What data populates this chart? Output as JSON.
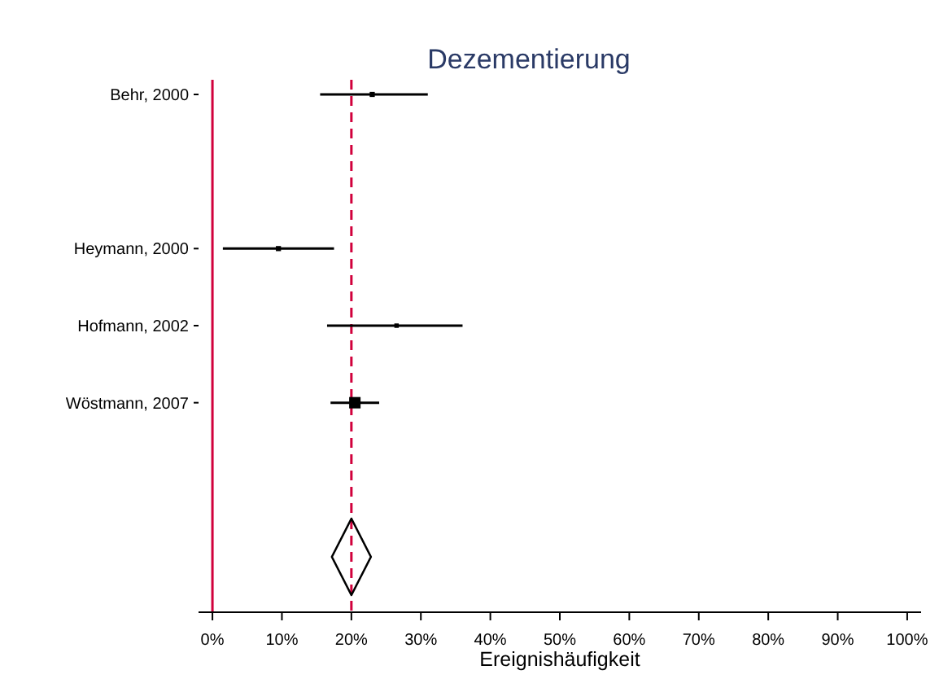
{
  "chart_data": {
    "type": "scatter",
    "orientation": "horizontal",
    "title": "Dezementierung",
    "xlabel": "Ereignishäufigkeit",
    "categories": [
      "Behr, 2000",
      null,
      "Heymann, 2000",
      "Hofmann, 2002",
      "Wöstmann, 2007",
      null,
      null
    ],
    "xlim": [
      -2,
      102
    ],
    "xticks": [
      {
        "value": 0,
        "label": "0%"
      },
      {
        "value": 10,
        "label": "10%"
      },
      {
        "value": 20,
        "label": "20%"
      },
      {
        "value": 30,
        "label": "30%"
      },
      {
        "value": 40,
        "label": "40%"
      },
      {
        "value": 50,
        "label": "50%"
      },
      {
        "value": 60,
        "label": "60%"
      },
      {
        "value": 70,
        "label": "70%"
      },
      {
        "value": 80,
        "label": "80%"
      },
      {
        "value": 90,
        "label": "90%"
      },
      {
        "value": 100,
        "label": "100%"
      }
    ],
    "series": [
      {
        "type": "bubble",
        "marker": "square",
        "color": "#000000",
        "values": [
          23,
          null,
          9.5,
          26.5,
          20.5,
          null,
          null
        ],
        "sizes": [
          0.2,
          null,
          0.2,
          0.15,
          1,
          null,
          null
        ],
        "errors": [
          [
            15.5,
            31
          ],
          null,
          [
            1.5,
            17.5
          ],
          [
            16.5,
            36
          ],
          [
            17,
            24
          ],
          null,
          null
        ]
      }
    ],
    "ref_lines": [
      {
        "axis": "x",
        "value": 20,
        "color": "#d1003c",
        "line_style": "dashed"
      }
    ]
  }
}
